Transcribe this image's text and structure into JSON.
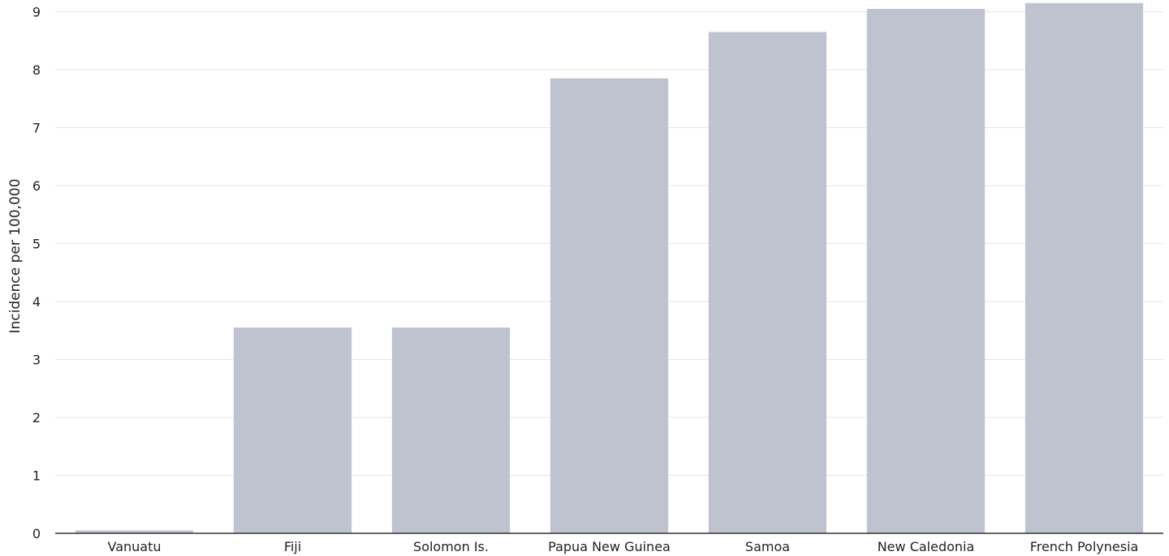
{
  "chart_data": {
    "type": "bar",
    "categories": [
      "Vanuatu",
      "Fiji",
      "Solomon Is.",
      "Papua New Guinea",
      "Samoa",
      "New Caledonia",
      "French Polynesia"
    ],
    "values": [
      0.05,
      3.55,
      3.55,
      7.85,
      8.65,
      9.05,
      9.15
    ],
    "yticks": [
      "0",
      "1",
      "2",
      "3",
      "4",
      "5",
      "6",
      "7",
      "8",
      "9"
    ],
    "ylabel": "Incidence per 100,000",
    "xlabel": "",
    "title": "",
    "ylim": [
      0,
      9.15
    ],
    "grid": true,
    "colors": {
      "bar": "#bec3cf",
      "grid": "#e6e6e6",
      "axis": "#333333",
      "text": "#222222"
    }
  }
}
